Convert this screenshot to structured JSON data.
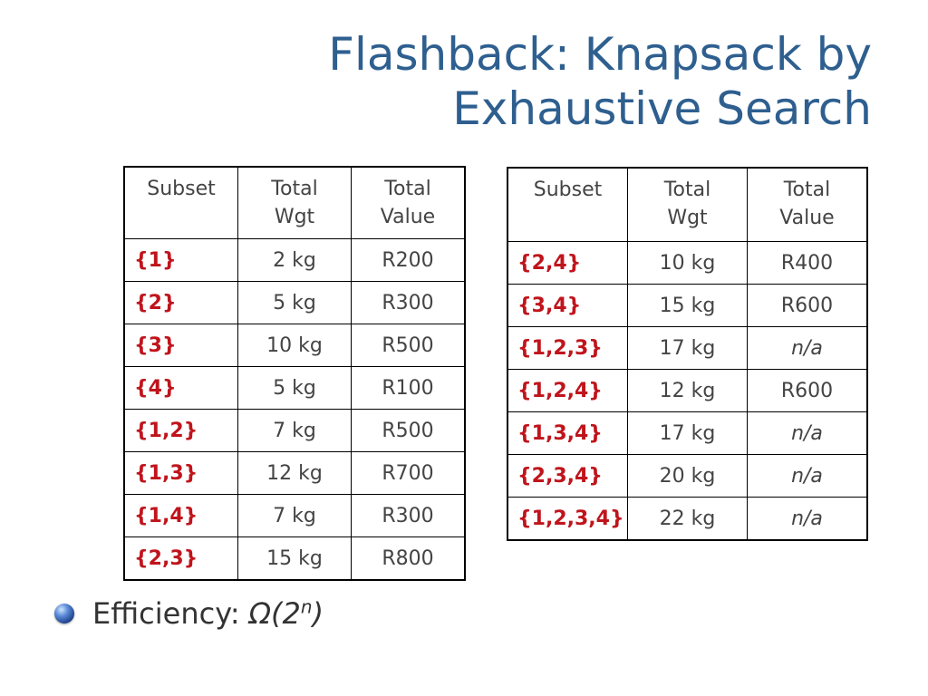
{
  "title": {
    "line1": "Flashback:  Knapsack by",
    "line2": "Exhaustive Search"
  },
  "table_left": {
    "headers": [
      "Subset",
      "Total\nWgt",
      "Total\nValue"
    ],
    "rows": [
      {
        "subset": "{1}",
        "weight": "2 kg",
        "value": "R200"
      },
      {
        "subset": "{2}",
        "weight": "5 kg",
        "value": "R300"
      },
      {
        "subset": "{3}",
        "weight": "10 kg",
        "value": "R500"
      },
      {
        "subset": "{4}",
        "weight": "5 kg",
        "value": "R100"
      },
      {
        "subset": "{1,2}",
        "weight": "7 kg",
        "value": "R500"
      },
      {
        "subset": "{1,3}",
        "weight": "12 kg",
        "value": "R700"
      },
      {
        "subset": "{1,4}",
        "weight": "7 kg",
        "value": "R300"
      },
      {
        "subset": "{2,3}",
        "weight": "15 kg",
        "value": "R800"
      }
    ]
  },
  "table_right": {
    "headers": [
      "Subset",
      "Total\nWgt",
      "Total\nValue"
    ],
    "rows": [
      {
        "subset": "{2,4}",
        "weight": "10 kg",
        "value": "R400"
      },
      {
        "subset": "{3,4}",
        "weight": "15 kg",
        "value": "R600"
      },
      {
        "subset": "{1,2,3}",
        "weight": "17 kg",
        "value": "n/a"
      },
      {
        "subset": "{1,2,4}",
        "weight": "12 kg",
        "value": "R600"
      },
      {
        "subset": "{1,3,4}",
        "weight": "17 kg",
        "value": "n/a"
      },
      {
        "subset": "{2,3,4}",
        "weight": "20 kg",
        "value": "n/a"
      },
      {
        "subset": "{1,2,3,4}",
        "weight": "22 kg",
        "value": "n/a"
      }
    ]
  },
  "bullet": {
    "icon": "sphere-bullet-icon",
    "label": "Efficiency:",
    "formula_base": "Ω(2",
    "formula_exp": "n",
    "formula_close": ")"
  },
  "colors": {
    "title": "#2e5f8f",
    "subset_text": "#c0141c",
    "cell_text": "#444444"
  }
}
